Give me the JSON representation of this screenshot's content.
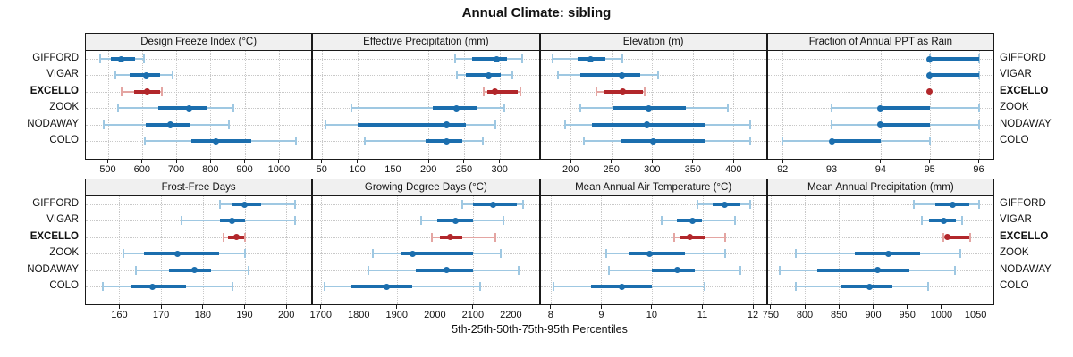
{
  "title": "Annual Climate: sibling",
  "axis_caption": "5th-25th-50th-75th-95th Percentiles",
  "sites": [
    "GIFFORD",
    "VIGAR",
    "EXCELLO",
    "ZOOK",
    "NODAWAY",
    "COLO"
  ],
  "highlight_site": "EXCELLO",
  "percentile_labels": [
    "5th",
    "25th",
    "50th",
    "75th",
    "95th"
  ],
  "colors": {
    "blue": "#1b6eae",
    "blue_light": "#9fc8e2",
    "red": "#b2272b",
    "red_light": "#e4a5a2",
    "strip_bg": "#f0f0f0",
    "grid": "#c8c8c8",
    "border": "#1a1a1a",
    "text": "#111111"
  },
  "chart_data": [
    {
      "type": "dotplot-interval",
      "title": "Design Freeze Index (°C)",
      "row": 0,
      "col": 0,
      "ticks": [
        500,
        600,
        700,
        800,
        900,
        1000
      ],
      "xlim": [
        436,
        1095
      ],
      "series": [
        {
          "site": "GIFFORD",
          "values": [
            477,
            510,
            540,
            580,
            605
          ]
        },
        {
          "site": "VIGAR",
          "values": [
            523,
            565,
            613,
            652,
            690
          ]
        },
        {
          "site": "EXCELLO",
          "values": [
            541,
            577,
            616,
            652,
            657
          ]
        },
        {
          "site": "ZOOK",
          "values": [
            531,
            648,
            737,
            789,
            866
          ]
        },
        {
          "site": "NODAWAY",
          "values": [
            487,
            611,
            682,
            739,
            854
          ]
        },
        {
          "site": "COLO",
          "values": [
            607,
            744,
            817,
            919,
            1049
          ]
        }
      ]
    },
    {
      "type": "dotplot-interval",
      "title": "Effective Precipitation (mm)",
      "row": 0,
      "col": 1,
      "ticks": [
        50,
        100,
        150,
        200,
        250,
        300
      ],
      "xlim": [
        38,
        355
      ],
      "series": [
        {
          "site": "GIFFORD",
          "values": [
            237,
            262,
            296,
            311,
            332
          ]
        },
        {
          "site": "VIGAR",
          "values": [
            240,
            252,
            285,
            302,
            318
          ]
        },
        {
          "site": "EXCELLO",
          "values": [
            278,
            283,
            293,
            325,
            329
          ]
        },
        {
          "site": "ZOOK",
          "values": [
            92,
            206,
            240,
            268,
            306
          ]
        },
        {
          "site": "NODAWAY",
          "values": [
            55,
            100,
            225,
            252,
            294
          ]
        },
        {
          "site": "COLO",
          "values": [
            110,
            196,
            225,
            248,
            276
          ]
        }
      ]
    },
    {
      "type": "dotplot-interval",
      "title": "Elevation (m)",
      "row": 0,
      "col": 2,
      "ticks": [
        200,
        250,
        300,
        350,
        400
      ],
      "xlim": [
        163,
        440
      ],
      "series": [
        {
          "site": "GIFFORD",
          "values": [
            178,
            208,
            224,
            242,
            263
          ]
        },
        {
          "site": "VIGAR",
          "values": [
            184,
            212,
            263,
            286,
            307
          ]
        },
        {
          "site": "EXCELLO",
          "values": [
            232,
            242,
            264,
            289,
            291
          ]
        },
        {
          "site": "ZOOK",
          "values": [
            212,
            252,
            296,
            341,
            393
          ]
        },
        {
          "site": "NODAWAY",
          "values": [
            193,
            226,
            294,
            366,
            421
          ]
        },
        {
          "site": "COLO",
          "values": [
            216,
            261,
            301,
            366,
            420
          ]
        }
      ]
    },
    {
      "type": "dotplot-interval",
      "title": "Fraction of Annual PPT as Rain",
      "row": 0,
      "col": 3,
      "ticks": [
        92,
        93,
        94,
        95,
        96
      ],
      "xlim": [
        91.7,
        96.3
      ],
      "series": [
        {
          "site": "GIFFORD",
          "values": [
            95,
            95,
            95,
            96,
            96
          ]
        },
        {
          "site": "VIGAR",
          "values": [
            95,
            95,
            95,
            96,
            96
          ]
        },
        {
          "site": "EXCELLO",
          "values": [
            95,
            95,
            95,
            95,
            95
          ]
        },
        {
          "site": "ZOOK",
          "values": [
            93,
            94,
            94,
            95,
            96
          ]
        },
        {
          "site": "NODAWAY",
          "values": [
            93,
            94,
            94,
            95,
            96
          ]
        },
        {
          "site": "COLO",
          "values": [
            92,
            93,
            93,
            94,
            95
          ]
        }
      ]
    },
    {
      "type": "dotplot-interval",
      "title": "Frost-Free Days",
      "row": 1,
      "col": 0,
      "ticks": [
        160,
        170,
        180,
        190,
        200
      ],
      "xlim": [
        152,
        206
      ],
      "series": [
        {
          "site": "GIFFORD",
          "values": [
            184,
            187,
            190,
            194,
            202
          ]
        },
        {
          "site": "VIGAR",
          "values": [
            175,
            184,
            187,
            190,
            202
          ]
        },
        {
          "site": "EXCELLO",
          "values": [
            185,
            186,
            188,
            190,
            190
          ]
        },
        {
          "site": "ZOOK",
          "values": [
            161,
            166,
            174,
            184,
            190
          ]
        },
        {
          "site": "NODAWAY",
          "values": [
            164,
            172,
            178,
            182,
            191
          ]
        },
        {
          "site": "COLO",
          "values": [
            156,
            163,
            168,
            176,
            187
          ]
        }
      ]
    },
    {
      "type": "dotplot-interval",
      "title": "Growing Degree Days (°C)",
      "row": 1,
      "col": 1,
      "ticks": [
        1700,
        1800,
        1900,
        2000,
        2100,
        2200
      ],
      "xlim": [
        1680,
        2273
      ],
      "series": [
        {
          "site": "GIFFORD",
          "values": [
            2073,
            2100,
            2153,
            2215,
            2232
          ]
        },
        {
          "site": "VIGAR",
          "values": [
            1964,
            2007,
            2054,
            2100,
            2180
          ]
        },
        {
          "site": "EXCELLO",
          "values": [
            1992,
            2014,
            2041,
            2072,
            2158
          ]
        },
        {
          "site": "ZOOK",
          "values": [
            1837,
            1910,
            1942,
            2100,
            2172
          ]
        },
        {
          "site": "NODAWAY",
          "values": [
            1826,
            1949,
            2032,
            2101,
            2219
          ]
        },
        {
          "site": "COLO",
          "values": [
            1710,
            1780,
            1874,
            1940,
            2118
          ]
        }
      ]
    },
    {
      "type": "dotplot-interval",
      "title": "Mean Annual Air Temperature (°C)",
      "row": 1,
      "col": 2,
      "ticks": [
        8,
        9,
        10,
        11,
        12
      ],
      "xlim": [
        7.8,
        12.26
      ],
      "series": [
        {
          "site": "GIFFORD",
          "values": [
            10.9,
            11.2,
            11.45,
            11.75,
            11.95
          ]
        },
        {
          "site": "VIGAR",
          "values": [
            10.2,
            10.5,
            10.8,
            11.0,
            11.65
          ]
        },
        {
          "site": "EXCELLO",
          "values": [
            10.45,
            10.55,
            10.75,
            11.05,
            11.45
          ]
        },
        {
          "site": "ZOOK",
          "values": [
            9.1,
            9.55,
            9.95,
            10.65,
            11.45
          ]
        },
        {
          "site": "NODAWAY",
          "values": [
            9.15,
            10.0,
            10.5,
            10.85,
            11.75
          ]
        },
        {
          "site": "COLO",
          "values": [
            8.05,
            8.8,
            9.4,
            10.0,
            11.05
          ]
        }
      ]
    },
    {
      "type": "dotplot-interval",
      "title": "Mean Annual Precipitation (mm)",
      "row": 1,
      "col": 3,
      "ticks": [
        750,
        800,
        850,
        900,
        950,
        1000,
        1050
      ],
      "xlim": [
        746,
        1076
      ],
      "series": [
        {
          "site": "GIFFORD",
          "values": [
            960,
            991,
            1017,
            1041,
            1055
          ]
        },
        {
          "site": "VIGAR",
          "values": [
            971,
            982,
            1003,
            1021,
            1030
          ]
        },
        {
          "site": "EXCELLO",
          "values": [
            1003,
            1005,
            1008,
            1040,
            1042
          ]
        },
        {
          "site": "ZOOK",
          "values": [
            787,
            873,
            922,
            969,
            1027
          ]
        },
        {
          "site": "NODAWAY",
          "values": [
            763,
            818,
            907,
            953,
            1020
          ]
        },
        {
          "site": "COLO",
          "values": [
            787,
            854,
            895,
            928,
            980
          ]
        }
      ]
    }
  ]
}
